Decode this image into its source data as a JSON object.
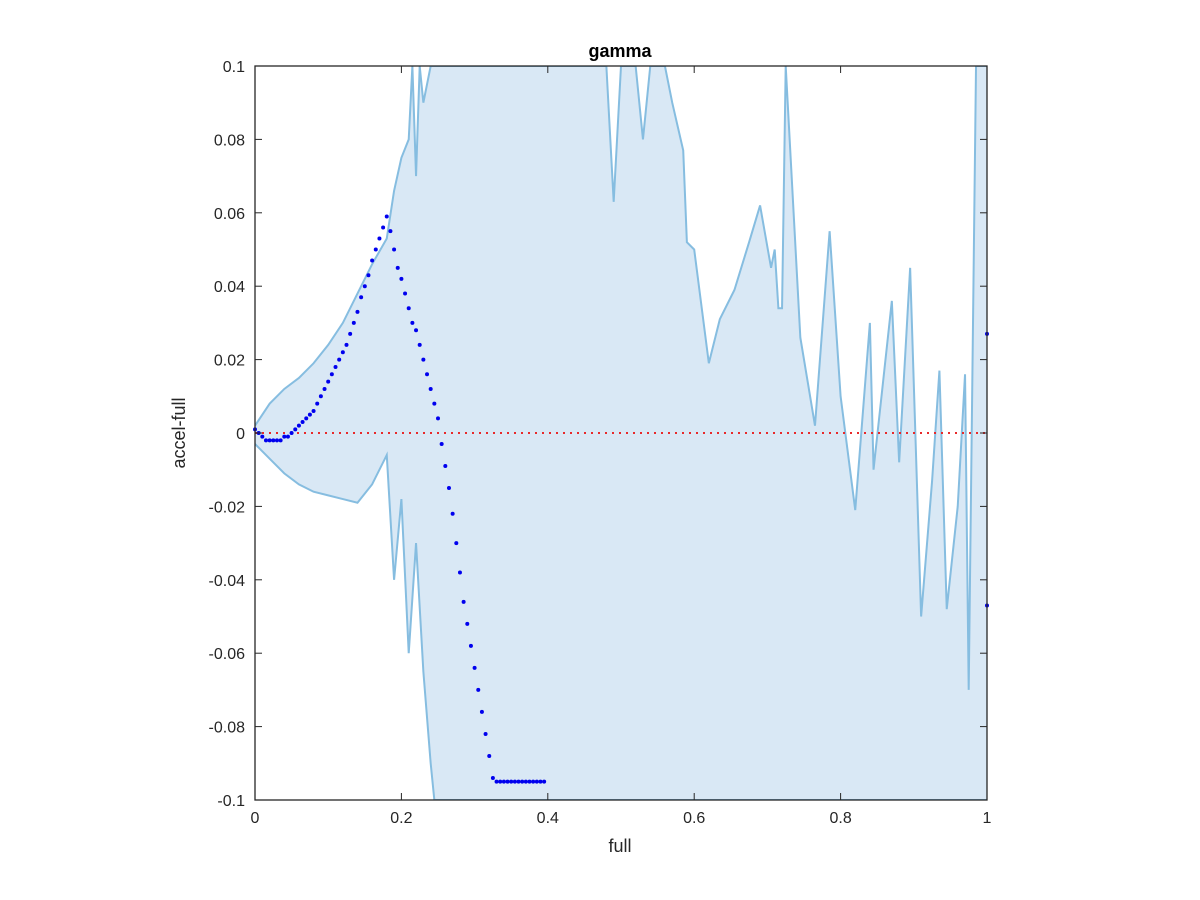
{
  "chart_data": {
    "type": "scatter",
    "title": "gamma",
    "xlabel": "full",
    "ylabel": "accel-full",
    "xlim": [
      0,
      1
    ],
    "ylim": [
      -0.1,
      0.1
    ],
    "x_ticks": [
      0,
      0.2,
      0.4,
      0.6,
      0.8,
      1
    ],
    "x_tick_labels": [
      "0",
      "0.2",
      "0.4",
      "0.6",
      "0.8",
      "1"
    ],
    "y_ticks": [
      -0.1,
      -0.08,
      -0.06,
      -0.04,
      -0.02,
      0,
      0.02,
      0.04,
      0.06,
      0.08,
      0.1
    ],
    "y_tick_labels": [
      "-0.1",
      "-0.08",
      "-0.06",
      "-0.04",
      "-0.02",
      "0",
      "0.02",
      "0.04",
      "0.06",
      "0.08",
      "0.1"
    ],
    "reference_line": {
      "y": 0,
      "style": "dotted",
      "color": "#e8292a"
    },
    "band": {
      "fill_color": "#d9e8f5",
      "line_color": "#86bde0",
      "upper": [
        [
          0.0,
          0.002
        ],
        [
          0.02,
          0.008
        ],
        [
          0.04,
          0.012
        ],
        [
          0.06,
          0.015
        ],
        [
          0.08,
          0.019
        ],
        [
          0.1,
          0.024
        ],
        [
          0.12,
          0.03
        ],
        [
          0.14,
          0.038
        ],
        [
          0.16,
          0.046
        ],
        [
          0.18,
          0.053
        ],
        [
          0.19,
          0.066
        ],
        [
          0.2,
          0.075
        ],
        [
          0.21,
          0.08
        ],
        [
          0.215,
          0.1
        ],
        [
          0.22,
          0.07
        ],
        [
          0.225,
          0.1
        ],
        [
          0.23,
          0.09
        ],
        [
          0.24,
          0.1
        ],
        [
          0.3,
          0.1
        ],
        [
          0.48,
          0.1
        ],
        [
          0.49,
          0.063
        ],
        [
          0.5,
          0.1
        ],
        [
          0.52,
          0.1
        ],
        [
          0.53,
          0.08
        ],
        [
          0.54,
          0.1
        ],
        [
          0.56,
          0.1
        ],
        [
          0.57,
          0.09
        ],
        [
          0.585,
          0.077
        ],
        [
          0.59,
          0.052
        ],
        [
          0.6,
          0.05
        ],
        [
          0.62,
          0.019
        ],
        [
          0.635,
          0.031
        ],
        [
          0.655,
          0.039
        ],
        [
          0.675,
          0.052
        ],
        [
          0.69,
          0.062
        ],
        [
          0.705,
          0.045
        ],
        [
          0.71,
          0.05
        ],
        [
          0.715,
          0.034
        ],
        [
          0.72,
          0.034
        ],
        [
          0.725,
          0.1
        ],
        [
          0.745,
          0.026
        ],
        [
          0.765,
          0.002
        ],
        [
          0.785,
          0.055
        ],
        [
          0.8,
          0.01
        ],
        [
          0.82,
          -0.021
        ],
        [
          0.84,
          0.03
        ],
        [
          0.845,
          -0.01
        ],
        [
          0.87,
          0.036
        ],
        [
          0.88,
          -0.008
        ],
        [
          0.895,
          0.045
        ],
        [
          0.91,
          -0.05
        ],
        [
          0.925,
          -0.013
        ],
        [
          0.935,
          0.017
        ],
        [
          0.945,
          -0.048
        ],
        [
          0.96,
          -0.02
        ],
        [
          0.97,
          0.016
        ],
        [
          0.975,
          -0.07
        ],
        [
          0.985,
          0.1
        ],
        [
          0.99,
          0.1
        ],
        [
          1.0,
          0.1
        ]
      ],
      "lower": [
        [
          0.0,
          -0.003
        ],
        [
          0.02,
          -0.007
        ],
        [
          0.04,
          -0.011
        ],
        [
          0.06,
          -0.014
        ],
        [
          0.08,
          -0.016
        ],
        [
          0.1,
          -0.017
        ],
        [
          0.12,
          -0.018
        ],
        [
          0.14,
          -0.019
        ],
        [
          0.16,
          -0.014
        ],
        [
          0.18,
          -0.006
        ],
        [
          0.19,
          -0.04
        ],
        [
          0.2,
          -0.018
        ],
        [
          0.21,
          -0.06
        ],
        [
          0.22,
          -0.03
        ],
        [
          0.23,
          -0.065
        ],
        [
          0.24,
          -0.09
        ],
        [
          0.245,
          -0.1
        ],
        [
          0.28,
          -0.1
        ],
        [
          0.5,
          -0.1
        ],
        [
          1.0,
          -0.1
        ]
      ]
    },
    "series": [
      {
        "marker_color": "#0000ee",
        "x": [
          0.0,
          0.005,
          0.01,
          0.015,
          0.02,
          0.025,
          0.03,
          0.035,
          0.04,
          0.045,
          0.05,
          0.055,
          0.06,
          0.065,
          0.07,
          0.075,
          0.08,
          0.085,
          0.09,
          0.095,
          0.1,
          0.105,
          0.11,
          0.115,
          0.12,
          0.125,
          0.13,
          0.135,
          0.14,
          0.145,
          0.15,
          0.155,
          0.16,
          0.165,
          0.17,
          0.175,
          0.18,
          0.185,
          0.19,
          0.195,
          0.2,
          0.205,
          0.21,
          0.215,
          0.22,
          0.225,
          0.23,
          0.235,
          0.24,
          0.245,
          0.25,
          0.255,
          0.26,
          0.265,
          0.27,
          0.275,
          0.28,
          0.285,
          0.29,
          0.295,
          0.3,
          0.305,
          0.31,
          0.315,
          0.32,
          0.325,
          0.33,
          0.335,
          0.34,
          0.345,
          0.35,
          0.355,
          0.36,
          0.365,
          0.37,
          0.375,
          0.38,
          0.385,
          0.39,
          0.395,
          1.0,
          1.0
        ],
        "y": [
          0.001,
          0.0,
          -0.001,
          -0.002,
          -0.002,
          -0.002,
          -0.002,
          -0.002,
          -0.001,
          -0.001,
          0.0,
          0.001,
          0.002,
          0.003,
          0.004,
          0.005,
          0.006,
          0.008,
          0.01,
          0.012,
          0.014,
          0.016,
          0.018,
          0.02,
          0.022,
          0.024,
          0.027,
          0.03,
          0.033,
          0.037,
          0.04,
          0.043,
          0.047,
          0.05,
          0.053,
          0.056,
          0.059,
          0.055,
          0.05,
          0.045,
          0.042,
          0.038,
          0.034,
          0.03,
          0.028,
          0.024,
          0.02,
          0.016,
          0.012,
          0.008,
          0.004,
          -0.003,
          -0.009,
          -0.015,
          -0.022,
          -0.03,
          -0.038,
          -0.046,
          -0.052,
          -0.058,
          -0.064,
          -0.07,
          -0.076,
          -0.082,
          -0.088,
          -0.094,
          -0.095,
          -0.095,
          -0.095,
          -0.095,
          -0.095,
          -0.095,
          -0.095,
          -0.095,
          -0.095,
          -0.095,
          -0.095,
          -0.095,
          -0.095,
          -0.095,
          0.027,
          -0.047
        ]
      }
    ],
    "grid": false,
    "legend": "none"
  }
}
